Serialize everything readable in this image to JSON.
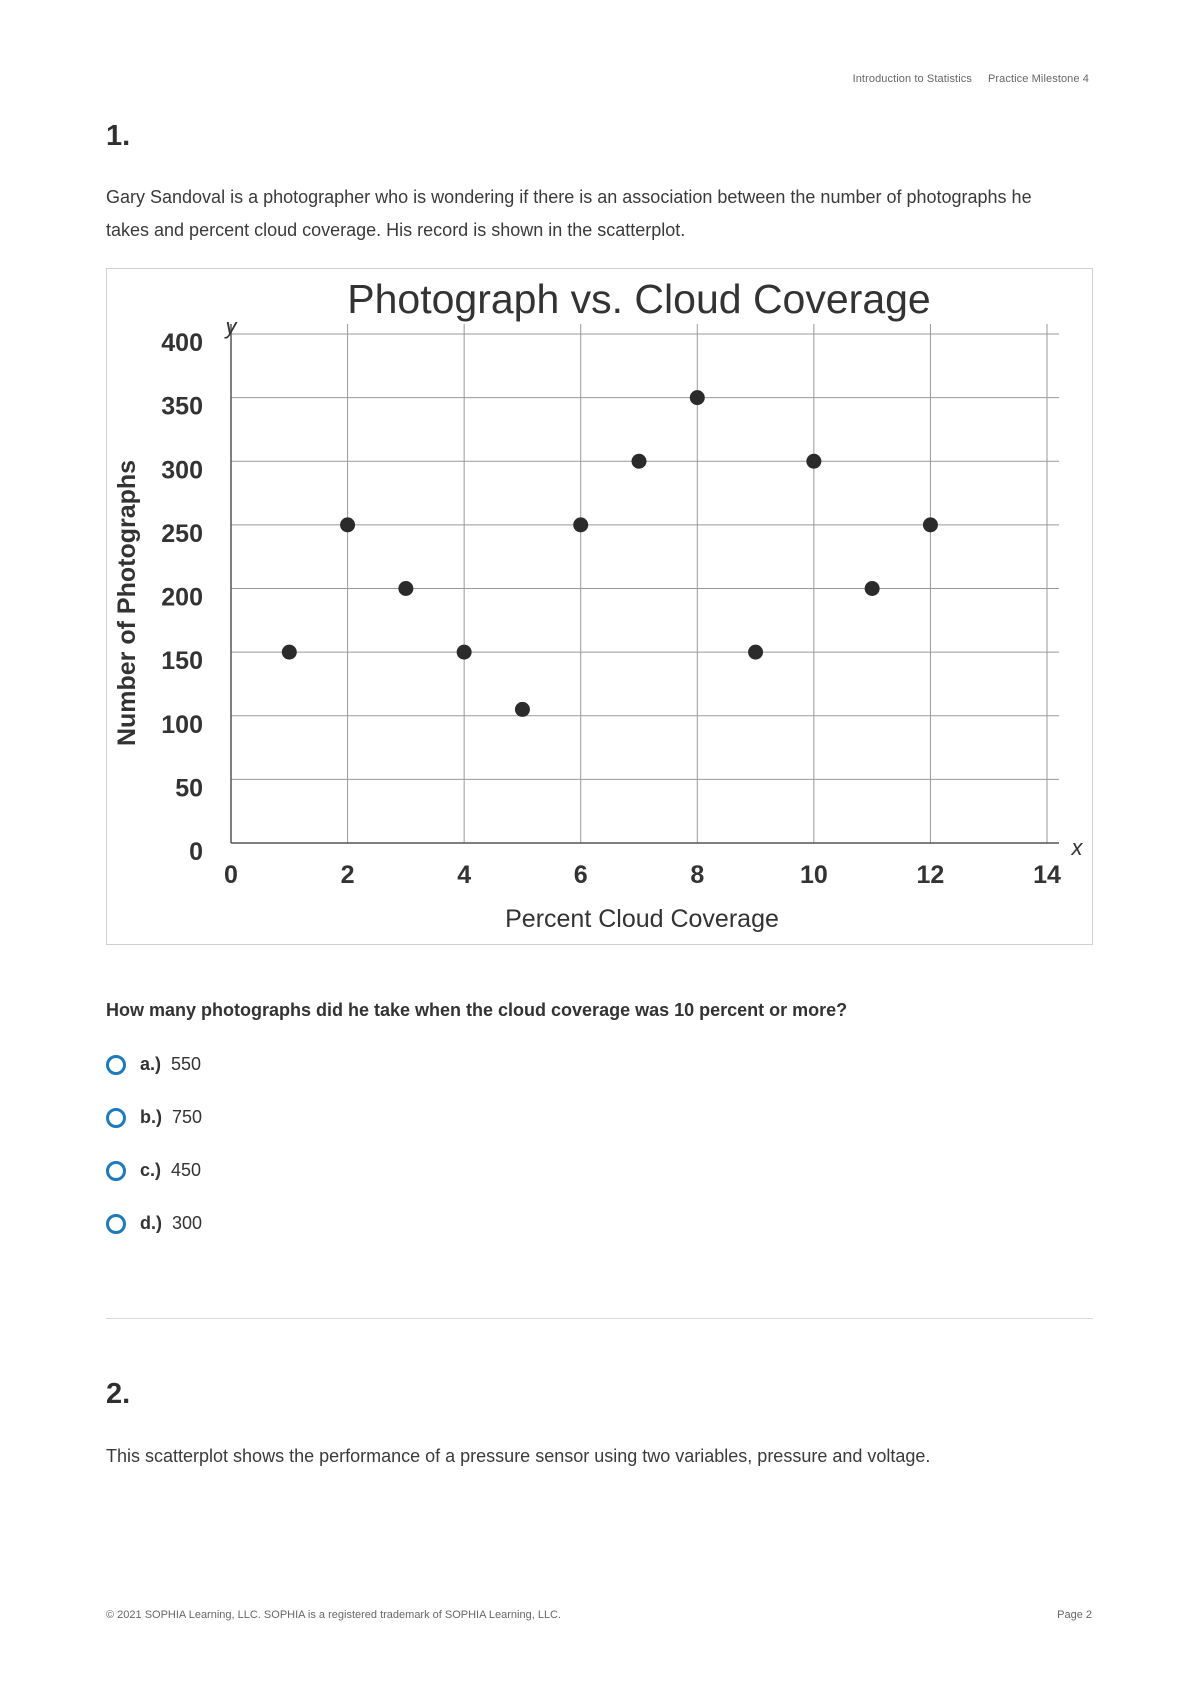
{
  "header": {
    "course": "Introduction to Statistics",
    "milestone": "Practice Milestone 4"
  },
  "question1": {
    "number": "1.",
    "prompt": "Gary Sandoval is a photographer who is wondering if there is an association between the number of photographs he takes and percent cloud coverage. His record is shown in the scatterplot.",
    "question": "How many photographs did he take when the cloud coverage was 10 percent or more?",
    "options": [
      {
        "letter": "a.)",
        "value": "550"
      },
      {
        "letter": "b.)",
        "value": "750"
      },
      {
        "letter": "c.)",
        "value": "450"
      },
      {
        "letter": "d.)",
        "value": "300"
      }
    ]
  },
  "question2": {
    "number": "2.",
    "prompt": "This scatterplot shows the performance of a pressure sensor using two variables, pressure and voltage."
  },
  "footer": {
    "copyright": "© 2021 SOPHIA Learning, LLC. SOPHIA is a registered trademark of SOPHIA Learning, LLC.",
    "page": "Page 2"
  },
  "colors": {
    "radio": "#1c7bbf",
    "point": "#2b2b2b",
    "grid": "#999999"
  },
  "chart_data": {
    "type": "scatter",
    "title": "Photograph vs. Cloud Coverage",
    "xlabel": "Percent Cloud Coverage",
    "ylabel": "Number of Photographs",
    "x_axis_letter": "x",
    "y_axis_letter": "y",
    "xlim": [
      0,
      14
    ],
    "ylim": [
      0,
      400
    ],
    "xticks": [
      0,
      2,
      4,
      6,
      8,
      10,
      12,
      14
    ],
    "yticks": [
      0,
      50,
      100,
      150,
      200,
      250,
      300,
      350,
      400
    ],
    "grid": true,
    "x": [
      1,
      2,
      3,
      4,
      5,
      6,
      7,
      8,
      9,
      10,
      11,
      12
    ],
    "y": [
      150,
      250,
      200,
      150,
      105,
      250,
      300,
      350,
      150,
      300,
      200,
      250
    ]
  }
}
